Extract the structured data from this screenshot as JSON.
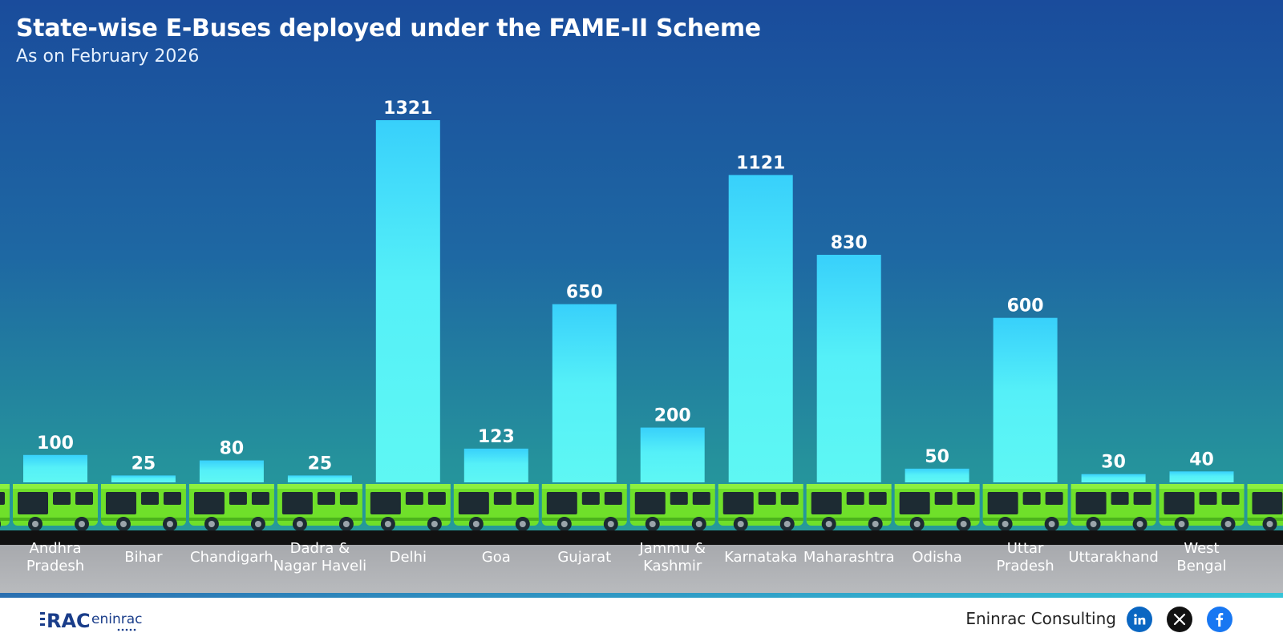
{
  "header": {
    "title": "State-wise E-Buses deployed under the FAME-II Scheme",
    "subtitle": "As on February 2026"
  },
  "chart_data": {
    "type": "bar",
    "title": "State-wise E-Buses deployed under the FAME-II Scheme",
    "subtitle": "As on February 2026",
    "categories": [
      [
        "Andhra",
        "Pradesh"
      ],
      [
        "Bihar"
      ],
      [
        "Chandigarh"
      ],
      [
        "Dadra &",
        "Nagar Haveli"
      ],
      [
        "Delhi"
      ],
      [
        "Goa"
      ],
      [
        "Gujarat"
      ],
      [
        "Jammu &",
        "Kashmir"
      ],
      [
        "Karnataka"
      ],
      [
        "Maharashtra"
      ],
      [
        "Odisha"
      ],
      [
        "Uttar",
        "Pradesh"
      ],
      [
        "Uttarakhand"
      ],
      [
        "West",
        "Bengal"
      ]
    ],
    "values": [
      100,
      25,
      80,
      25,
      1321,
      123,
      650,
      200,
      1121,
      830,
      50,
      600,
      30,
      40
    ],
    "ylim": [
      0,
      1321
    ],
    "grid": false,
    "bar_color": "#5ef5f5",
    "bar_color_top": "#38d0fb",
    "data_labels": true
  },
  "footer": {
    "logo_text": "RAC",
    "logo_word": "eninrac",
    "brand": "Eninrac Consulting"
  },
  "colors": {
    "bus_body": "#6fe02a",
    "bus_dark": "#1d2b33",
    "road": "#111111"
  },
  "icons": [
    "linkedin-icon",
    "x-icon",
    "facebook-icon"
  ]
}
